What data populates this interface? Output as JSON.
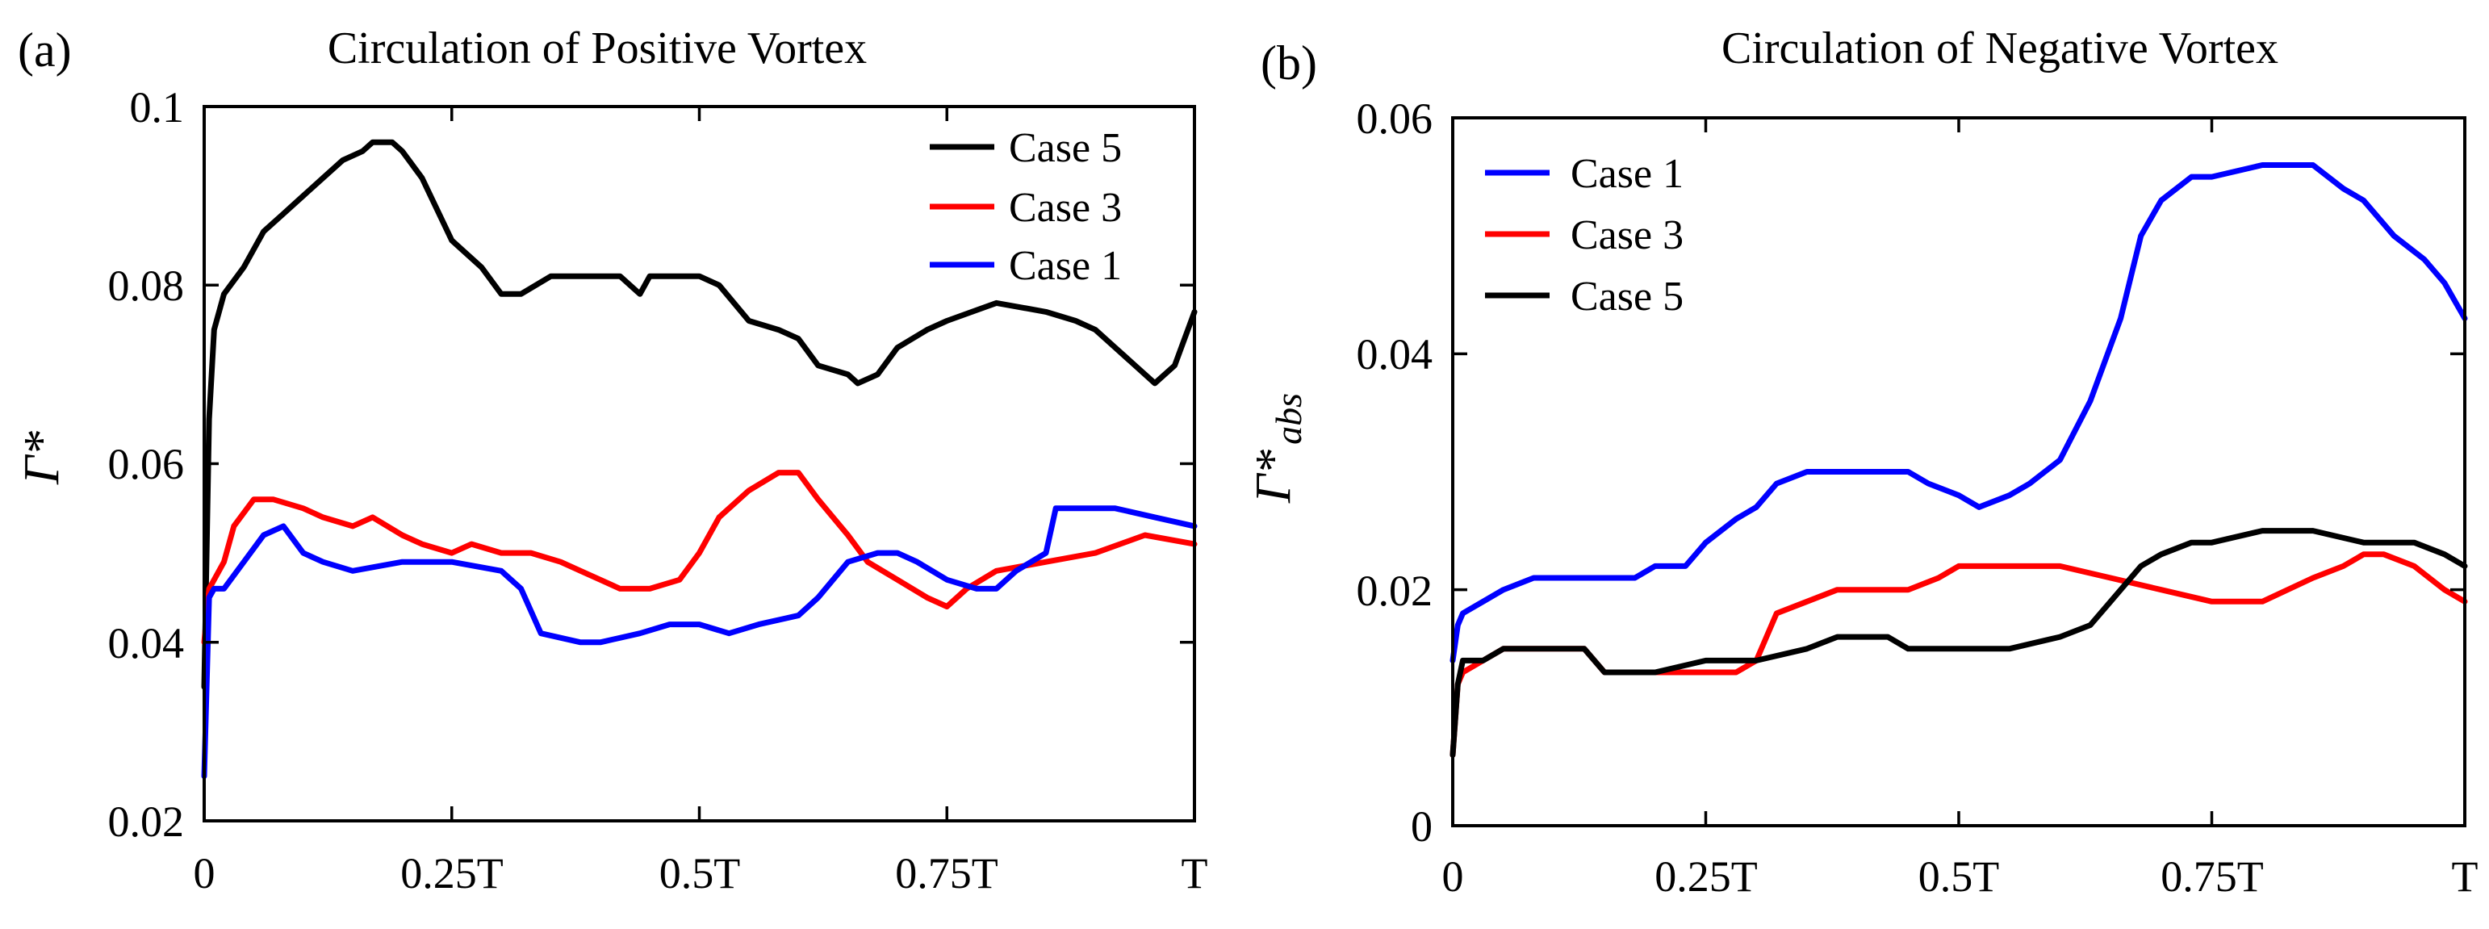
{
  "chart_data": [
    {
      "type": "line",
      "panel_label": "(a)",
      "title": "Circulation of Positive Vortex",
      "ylabel": "Γ*",
      "ylabel_sub": "",
      "xlabel": "",
      "xlim": [
        0,
        1
      ],
      "ylim": [
        0.02,
        0.1
      ],
      "grid": false,
      "legend_position": "top-right",
      "xticks": [
        0,
        0.25,
        0.5,
        0.75,
        1
      ],
      "xtick_labels": [
        "0",
        "0.25T",
        "0.5T",
        "0.75T",
        "T"
      ],
      "yticks": [
        0.02,
        0.04,
        0.06,
        0.08,
        0.1
      ],
      "ytick_labels": [
        "0.02",
        "0.04",
        "0.06",
        "0.08",
        "0.1"
      ],
      "series": [
        {
          "name": "Case 5",
          "color": "#000000",
          "x": [
            0,
            0.005,
            0.01,
            0.02,
            0.04,
            0.06,
            0.08,
            0.1,
            0.12,
            0.14,
            0.16,
            0.17,
            0.18,
            0.19,
            0.2,
            0.22,
            0.25,
            0.28,
            0.3,
            0.32,
            0.35,
            0.38,
            0.42,
            0.44,
            0.45,
            0.48,
            0.5,
            0.52,
            0.55,
            0.58,
            0.6,
            0.62,
            0.65,
            0.66,
            0.68,
            0.7,
            0.73,
            0.75,
            0.8,
            0.85,
            0.88,
            0.9,
            0.92,
            0.94,
            0.96,
            0.98,
            1.0
          ],
          "values": [
            0.035,
            0.065,
            0.075,
            0.079,
            0.082,
            0.086,
            0.088,
            0.09,
            0.092,
            0.094,
            0.095,
            0.096,
            0.096,
            0.096,
            0.095,
            0.092,
            0.085,
            0.082,
            0.079,
            0.079,
            0.081,
            0.081,
            0.081,
            0.079,
            0.081,
            0.081,
            0.081,
            0.08,
            0.076,
            0.075,
            0.074,
            0.071,
            0.07,
            0.069,
            0.07,
            0.073,
            0.075,
            0.076,
            0.078,
            0.077,
            0.076,
            0.075,
            0.073,
            0.071,
            0.069,
            0.071,
            0.077
          ]
        },
        {
          "name": "Case 3",
          "color": "#ff0000",
          "x": [
            0,
            0.005,
            0.01,
            0.02,
            0.03,
            0.05,
            0.07,
            0.1,
            0.12,
            0.15,
            0.17,
            0.2,
            0.22,
            0.25,
            0.27,
            0.3,
            0.33,
            0.36,
            0.38,
            0.4,
            0.42,
            0.45,
            0.48,
            0.5,
            0.52,
            0.55,
            0.58,
            0.6,
            0.62,
            0.65,
            0.67,
            0.7,
            0.73,
            0.75,
            0.77,
            0.8,
            0.85,
            0.9,
            0.95,
            1.0
          ],
          "values": [
            0.04,
            0.046,
            0.047,
            0.049,
            0.053,
            0.056,
            0.056,
            0.055,
            0.054,
            0.053,
            0.054,
            0.052,
            0.051,
            0.05,
            0.051,
            0.05,
            0.05,
            0.049,
            0.048,
            0.047,
            0.046,
            0.046,
            0.047,
            0.05,
            0.054,
            0.057,
            0.059,
            0.059,
            0.056,
            0.052,
            0.049,
            0.047,
            0.045,
            0.044,
            0.046,
            0.048,
            0.049,
            0.05,
            0.052,
            0.051
          ]
        },
        {
          "name": "Case 1",
          "color": "#0000ff",
          "x": [
            0,
            0.005,
            0.01,
            0.02,
            0.04,
            0.06,
            0.08,
            0.1,
            0.12,
            0.15,
            0.2,
            0.25,
            0.3,
            0.32,
            0.34,
            0.38,
            0.4,
            0.44,
            0.47,
            0.5,
            0.53,
            0.56,
            0.6,
            0.62,
            0.65,
            0.68,
            0.7,
            0.72,
            0.75,
            0.78,
            0.8,
            0.82,
            0.85,
            0.86,
            0.88,
            0.92,
            0.96,
            1.0
          ],
          "values": [
            0.025,
            0.045,
            0.046,
            0.046,
            0.049,
            0.052,
            0.053,
            0.05,
            0.049,
            0.048,
            0.049,
            0.049,
            0.048,
            0.046,
            0.041,
            0.04,
            0.04,
            0.041,
            0.042,
            0.042,
            0.041,
            0.042,
            0.043,
            0.045,
            0.049,
            0.05,
            0.05,
            0.049,
            0.047,
            0.046,
            0.046,
            0.048,
            0.05,
            0.055,
            0.055,
            0.055,
            0.054,
            0.053
          ]
        }
      ]
    },
    {
      "type": "line",
      "panel_label": "(b)",
      "title": "Circulation of Negative Vortex",
      "ylabel": "Γ*",
      "ylabel_sub": "abs",
      "xlabel": "",
      "xlim": [
        0,
        1
      ],
      "ylim": [
        0,
        0.06
      ],
      "grid": false,
      "legend_position": "top-left",
      "xticks": [
        0,
        0.25,
        0.5,
        0.75,
        1
      ],
      "xtick_labels": [
        "0",
        "0.25T",
        "0.5T",
        "0.75T",
        "T"
      ],
      "yticks": [
        0,
        0.02,
        0.04,
        0.06
      ],
      "ytick_labels": [
        "0",
        "0.02",
        "0.04",
        "0.06"
      ],
      "series": [
        {
          "name": "Case 1",
          "color": "#0000ff",
          "x": [
            0,
            0.005,
            0.01,
            0.03,
            0.05,
            0.08,
            0.1,
            0.12,
            0.15,
            0.18,
            0.2,
            0.23,
            0.25,
            0.28,
            0.3,
            0.32,
            0.35,
            0.38,
            0.4,
            0.43,
            0.45,
            0.47,
            0.5,
            0.52,
            0.55,
            0.57,
            0.6,
            0.63,
            0.66,
            0.68,
            0.7,
            0.73,
            0.75,
            0.8,
            0.83,
            0.85,
            0.88,
            0.9,
            0.93,
            0.96,
            0.98,
            1.0
          ],
          "values": [
            0.014,
            0.017,
            0.018,
            0.019,
            0.02,
            0.021,
            0.021,
            0.021,
            0.021,
            0.021,
            0.022,
            0.022,
            0.024,
            0.026,
            0.027,
            0.029,
            0.03,
            0.03,
            0.03,
            0.03,
            0.03,
            0.029,
            0.028,
            0.027,
            0.028,
            0.029,
            0.031,
            0.036,
            0.043,
            0.05,
            0.053,
            0.055,
            0.055,
            0.056,
            0.056,
            0.056,
            0.054,
            0.053,
            0.05,
            0.048,
            0.046,
            0.043
          ]
        },
        {
          "name": "Case 3",
          "color": "#ff0000",
          "x": [
            0,
            0.005,
            0.01,
            0.03,
            0.05,
            0.1,
            0.13,
            0.15,
            0.2,
            0.25,
            0.28,
            0.3,
            0.32,
            0.35,
            0.38,
            0.42,
            0.45,
            0.48,
            0.5,
            0.55,
            0.6,
            0.65,
            0.7,
            0.75,
            0.8,
            0.85,
            0.88,
            0.9,
            0.92,
            0.95,
            0.98,
            1.0
          ],
          "values": [
            0.006,
            0.012,
            0.013,
            0.014,
            0.015,
            0.015,
            0.015,
            0.013,
            0.013,
            0.013,
            0.013,
            0.014,
            0.018,
            0.019,
            0.02,
            0.02,
            0.02,
            0.021,
            0.022,
            0.022,
            0.022,
            0.021,
            0.02,
            0.019,
            0.019,
            0.021,
            0.022,
            0.023,
            0.023,
            0.022,
            0.02,
            0.019
          ]
        },
        {
          "name": "Case 5",
          "color": "#000000",
          "x": [
            0,
            0.005,
            0.01,
            0.03,
            0.05,
            0.1,
            0.13,
            0.15,
            0.2,
            0.25,
            0.3,
            0.35,
            0.38,
            0.4,
            0.43,
            0.45,
            0.5,
            0.55,
            0.6,
            0.63,
            0.65,
            0.68,
            0.7,
            0.73,
            0.75,
            0.8,
            0.83,
            0.85,
            0.9,
            0.95,
            0.98,
            1.0
          ],
          "values": [
            0.006,
            0.012,
            0.014,
            0.014,
            0.015,
            0.015,
            0.015,
            0.013,
            0.013,
            0.014,
            0.014,
            0.015,
            0.016,
            0.016,
            0.016,
            0.015,
            0.015,
            0.015,
            0.016,
            0.017,
            0.019,
            0.022,
            0.023,
            0.024,
            0.024,
            0.025,
            0.025,
            0.025,
            0.024,
            0.024,
            0.023,
            0.022
          ]
        }
      ]
    }
  ]
}
